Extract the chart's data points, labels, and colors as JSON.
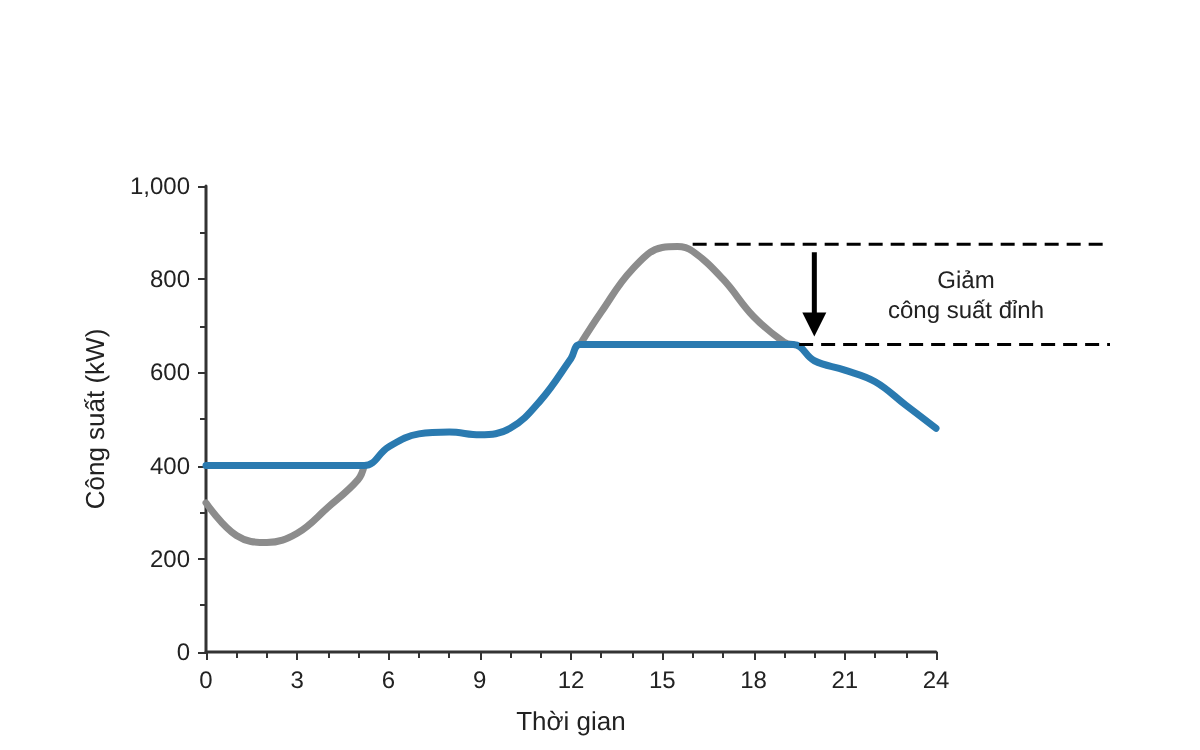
{
  "chart_data": {
    "type": "line",
    "xlabel": "Thời gian",
    "ylabel": "Công suất (kW)",
    "xlim": [
      0,
      24
    ],
    "xticks": [
      0,
      3,
      6,
      9,
      12,
      15,
      18,
      21,
      24
    ],
    "ylim": [
      0,
      1000
    ],
    "yticks": [
      0,
      200,
      400,
      600,
      800,
      {
        "value": 1000,
        "label": "1,000"
      }
    ],
    "grid": false,
    "marker": "none",
    "line_style": "solid",
    "series": [
      {
        "color": "#8c8c8c",
        "x": [
          0,
          1,
          2,
          3,
          4,
          5,
          5.2,
          8,
          12.3,
          13,
          14,
          15,
          15.5,
          16,
          17,
          18,
          19,
          19.3
        ],
        "values": [
          320,
          250,
          235,
          255,
          310,
          370,
          400,
          null,
          660,
          730,
          820,
          868,
          870,
          860,
          800,
          720,
          665,
          660
        ]
      },
      {
        "color": "#2a7ab0",
        "x": [
          0,
          5.2,
          6,
          7,
          8,
          9,
          10,
          11,
          12,
          12.3,
          19.3,
          20,
          21,
          22,
          23,
          24
        ],
        "values": [
          400,
          400,
          440,
          468,
          472,
          466,
          480,
          540,
          630,
          660,
          660,
          625,
          605,
          580,
          530,
          480
        ]
      }
    ],
    "ref_lines": [
      {
        "axis": "y",
        "value": 875,
        "color": "#000000",
        "line_style": "dashed"
      },
      {
        "axis": "y",
        "value": 660,
        "color": "#000000",
        "line_style": "dashed"
      }
    ],
    "annotations": [
      "Giảm\ncông suất đỉnh"
    ]
  }
}
